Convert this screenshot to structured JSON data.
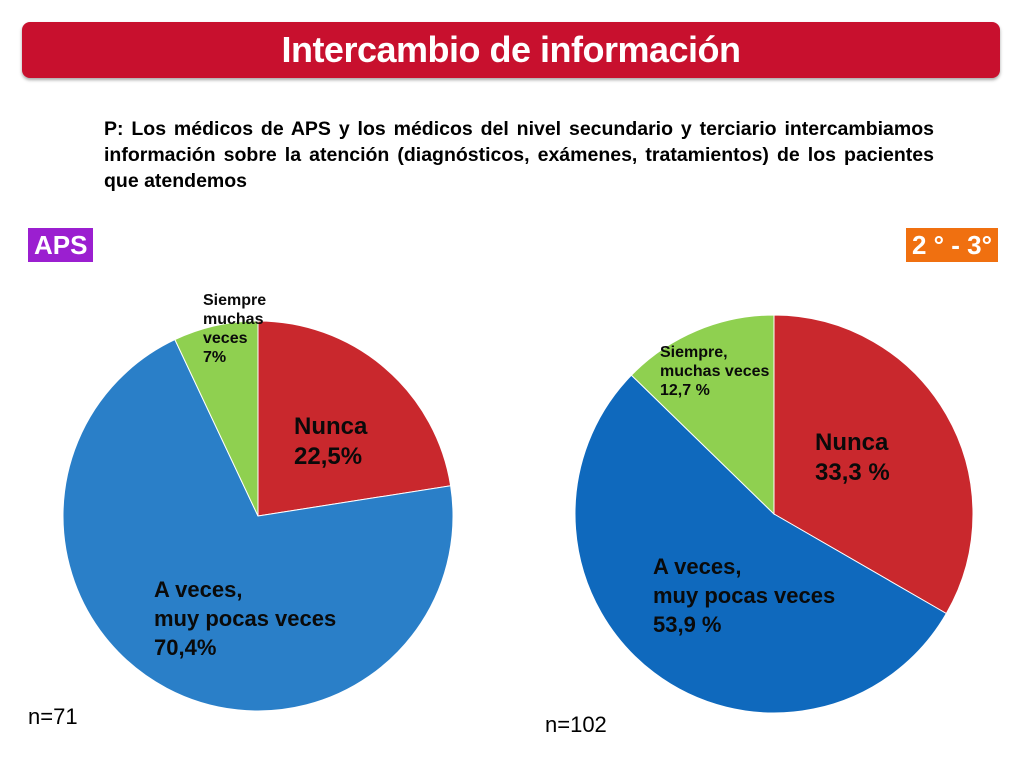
{
  "title": "Intercambio de información",
  "question": "P: Los médicos de APS y los médicos del nivel secundario y terciario intercambiamos información sobre la atención (diagnósticos, exámenes, tratamientos) de los pacientes que atendemos",
  "colors": {
    "title_bar": "#c8102e",
    "nunca": "#c9282d",
    "a_veces": "#2a7fc8",
    "a_veces_right": "#0f69bd",
    "siempre": "#8fd050",
    "aps_badge": "#9b1fd0",
    "sec_badge": "#f07010"
  },
  "chart_data": [
    {
      "type": "pie",
      "group_label": "APS",
      "sample": "n=71",
      "slices": [
        {
          "key": "nunca",
          "label": "Nunca\n22,5%",
          "value": 22.5
        },
        {
          "key": "a_veces",
          "label": "A veces,\nmuy pocas veces\n70,4%",
          "value": 70.4
        },
        {
          "key": "siempre",
          "label": "Siempre\n muchas\nveces\n 7%",
          "value": 7.0
        }
      ]
    },
    {
      "type": "pie",
      "group_label": "2 ° - 3°",
      "sample": "n=102",
      "slices": [
        {
          "key": "nunca",
          "label": "Nunca\n33,3 %",
          "value": 33.3
        },
        {
          "key": "a_veces",
          "label": "A veces,\nmuy pocas veces\n 53,9 %",
          "value": 53.9
        },
        {
          "key": "siempre",
          "label": "Siempre,\nmuchas veces\n12,7 %",
          "value": 12.7
        }
      ]
    }
  ]
}
